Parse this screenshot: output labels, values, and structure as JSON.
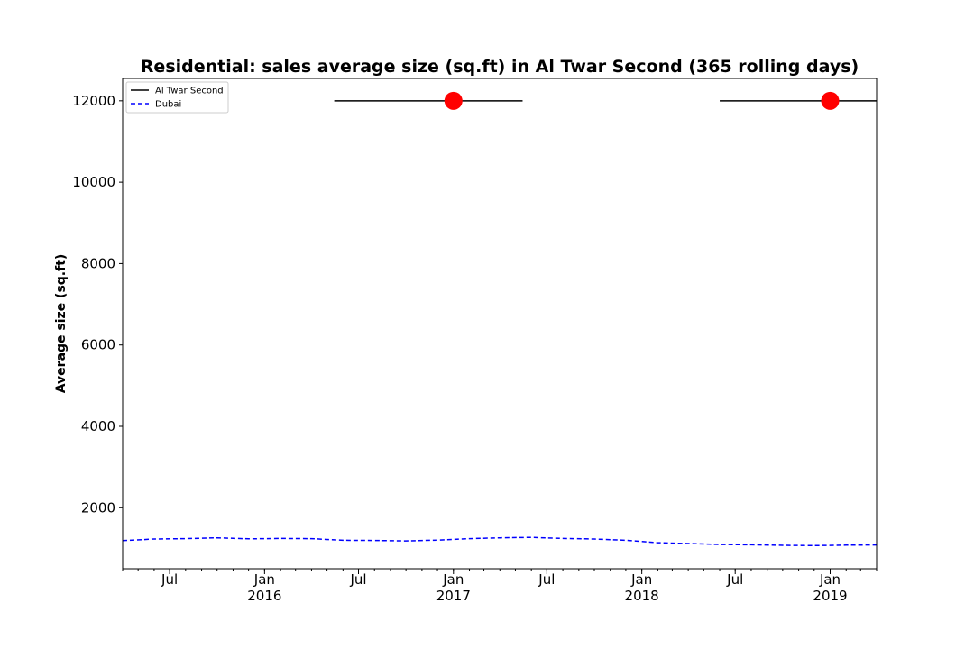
{
  "chart_data": {
    "type": "line",
    "title": "Residential: sales average size (sq.ft) in Al Twar Second (365 rolling days)",
    "xlabel": "",
    "ylabel": "Average size (sq.ft)",
    "xlim": [
      "2015-04-01",
      "2019-04-01"
    ],
    "ylim": [
      500,
      12550
    ],
    "y_ticks": [
      2000,
      4000,
      6000,
      8000,
      10000,
      12000
    ],
    "x_ticks": [
      {
        "date": "2015-07-01",
        "label": "Jul",
        "year": ""
      },
      {
        "date": "2016-01-01",
        "label": "Jan",
        "year": "2016"
      },
      {
        "date": "2016-07-01",
        "label": "Jul",
        "year": ""
      },
      {
        "date": "2017-01-01",
        "label": "Jan",
        "year": "2017"
      },
      {
        "date": "2017-07-01",
        "label": "Jul",
        "year": ""
      },
      {
        "date": "2018-01-01",
        "label": "Jan",
        "year": "2018"
      },
      {
        "date": "2018-07-01",
        "label": "Jul",
        "year": ""
      },
      {
        "date": "2019-01-01",
        "label": "Jan",
        "year": "2019"
      }
    ],
    "grid": false,
    "legend_position": "top-left",
    "series": [
      {
        "name": "Al Twar Second",
        "style": "solid",
        "color": "#000000",
        "segments": [
          {
            "x": [
              "2016-05-15",
              "2017-05-15"
            ],
            "y": [
              12000,
              12000
            ]
          },
          {
            "x": [
              "2018-06-01",
              "2019-04-01"
            ],
            "y": [
              12000,
              12000
            ]
          }
        ],
        "points": [
          {
            "x": "2017-01-01",
            "y": 12000
          },
          {
            "x": "2019-01-01",
            "y": 12000
          }
        ],
        "marker_color": "#ff0000"
      },
      {
        "name": "Dubai",
        "style": "dashed",
        "color": "#0000ff",
        "x": [
          "2015-04-01",
          "2015-06-01",
          "2015-08-01",
          "2015-10-01",
          "2015-12-01",
          "2016-02-01",
          "2016-04-01",
          "2016-06-01",
          "2016-08-01",
          "2016-10-01",
          "2016-12-01",
          "2017-02-01",
          "2017-04-01",
          "2017-06-01",
          "2017-08-01",
          "2017-10-01",
          "2017-12-01",
          "2018-02-01",
          "2018-04-01",
          "2018-06-01",
          "2018-08-01",
          "2018-10-01",
          "2018-12-01",
          "2019-02-01",
          "2019-04-01"
        ],
        "y": [
          1190,
          1230,
          1240,
          1260,
          1235,
          1245,
          1240,
          1200,
          1195,
          1185,
          1205,
          1240,
          1260,
          1270,
          1245,
          1230,
          1200,
          1140,
          1120,
          1095,
          1090,
          1075,
          1070,
          1080,
          1085
        ]
      }
    ]
  },
  "legend": [
    {
      "label": "Al Twar Second",
      "color": "#000000",
      "style": "solid"
    },
    {
      "label": "Dubai",
      "color": "#0000ff",
      "style": "dashed"
    }
  ]
}
